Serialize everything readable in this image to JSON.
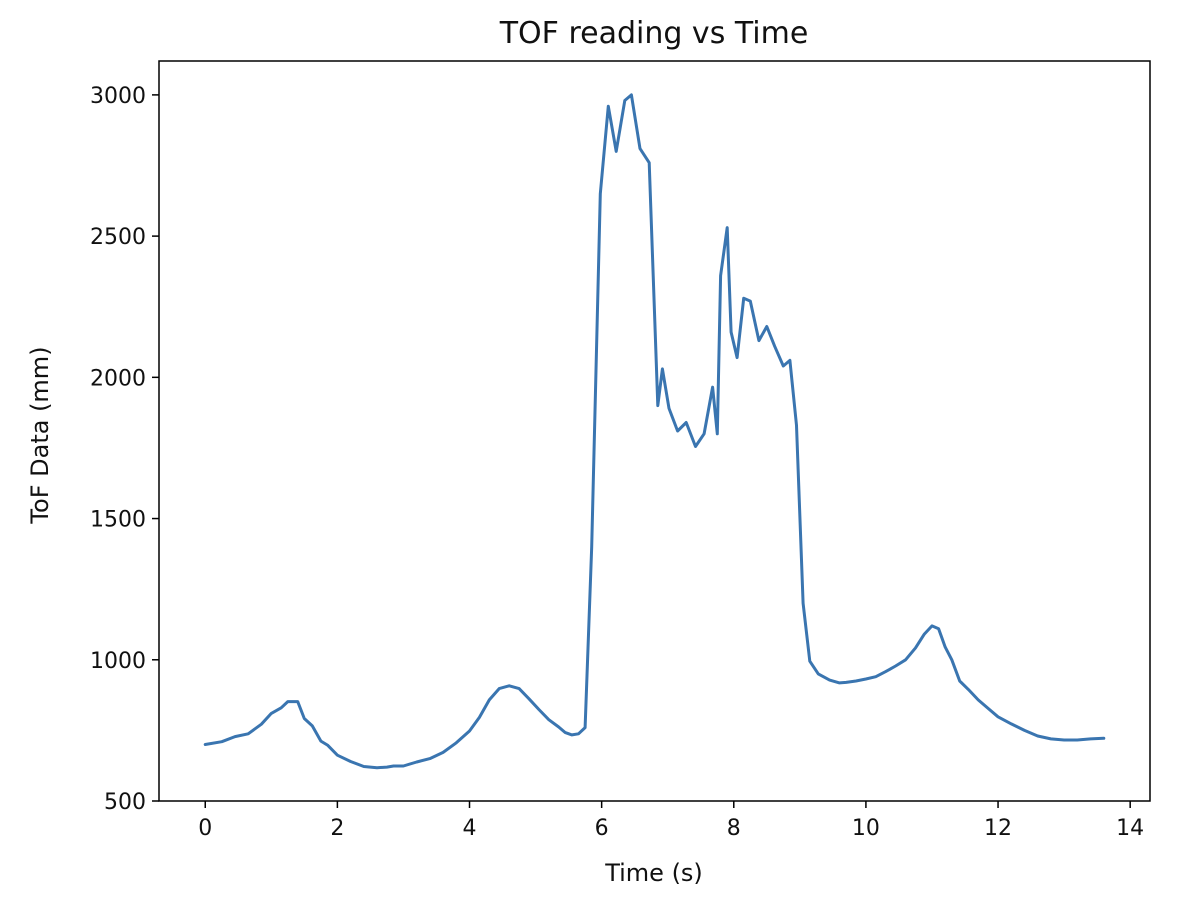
{
  "chart_data": {
    "type": "line",
    "title": "TOF reading vs Time",
    "xlabel": "Time (s)",
    "ylabel": "ToF Data (mm)",
    "xlim": [
      -0.7,
      14.3
    ],
    "ylim": [
      500,
      3120
    ],
    "xticks": [
      0,
      2,
      4,
      6,
      8,
      10,
      12,
      14
    ],
    "yticks": [
      500,
      1000,
      1500,
      2000,
      2500,
      3000
    ],
    "grid": false,
    "legend": "none",
    "series": [
      {
        "color": "#3a75b0",
        "x": [
          0.0,
          0.25,
          0.45,
          0.65,
          0.85,
          1.0,
          1.15,
          1.25,
          1.4,
          1.5,
          1.62,
          1.75,
          1.85,
          2.0,
          2.2,
          2.4,
          2.6,
          2.75,
          2.85,
          3.0,
          3.2,
          3.4,
          3.6,
          3.8,
          4.0,
          4.15,
          4.3,
          4.45,
          4.6,
          4.75,
          4.9,
          5.05,
          5.2,
          5.35,
          5.45,
          5.55,
          5.65,
          5.75,
          5.85,
          5.98,
          6.1,
          6.22,
          6.35,
          6.45,
          6.58,
          6.72,
          6.85,
          6.92,
          7.02,
          7.15,
          7.28,
          7.42,
          7.55,
          7.68,
          7.75,
          7.8,
          7.9,
          7.96,
          8.05,
          8.15,
          8.25,
          8.38,
          8.5,
          8.62,
          8.75,
          8.85,
          8.95,
          9.05,
          9.15,
          9.28,
          9.45,
          9.6,
          9.7,
          9.85,
          10.0,
          10.15,
          10.3,
          10.45,
          10.6,
          10.75,
          10.88,
          11.0,
          11.1,
          11.2,
          11.3,
          11.42,
          11.55,
          11.7,
          11.85,
          12.0,
          12.2,
          12.4,
          12.6,
          12.8,
          13.0,
          13.2,
          13.4,
          13.6
        ],
        "values": [
          700,
          710,
          728,
          738,
          772,
          810,
          830,
          852,
          852,
          792,
          766,
          712,
          698,
          662,
          640,
          622,
          618,
          620,
          624,
          624,
          638,
          650,
          672,
          706,
          748,
          796,
          858,
          898,
          908,
          898,
          862,
          824,
          788,
          762,
          742,
          734,
          738,
          760,
          1400,
          2650,
          2960,
          2800,
          2980,
          3000,
          2810,
          2760,
          1900,
          2030,
          1890,
          1810,
          1840,
          1755,
          1800,
          1965,
          1800,
          2360,
          2530,
          2160,
          2070,
          2280,
          2270,
          2130,
          2180,
          2110,
          2040,
          2060,
          1830,
          1200,
          995,
          950,
          928,
          918,
          920,
          925,
          932,
          940,
          958,
          978,
          1000,
          1042,
          1090,
          1120,
          1110,
          1045,
          1000,
          925,
          895,
          858,
          828,
          798,
          773,
          750,
          730,
          720,
          716,
          716,
          720,
          722
        ]
      }
    ]
  }
}
